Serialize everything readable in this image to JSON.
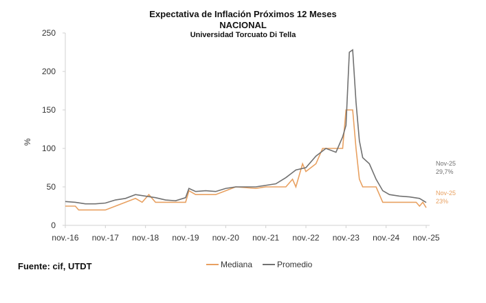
{
  "chart_data": {
    "type": "line",
    "title": "Expectativa de Inflación Próximos 12 Meses",
    "subtitle": "NACIONAL",
    "subtitle2": "Universidad Torcuato Di Tella",
    "ylabel": "%",
    "ylim": [
      0,
      250
    ],
    "yticks": [
      "0",
      "50",
      "100",
      "150",
      "200",
      "250"
    ],
    "xlim": [
      "2016-11",
      "2025-11"
    ],
    "xticks": [
      "nov.-16",
      "nov.-17",
      "nov.-18",
      "nov.-19",
      "nov.-20",
      "nov.-21",
      "nov.-22",
      "nov.-23",
      "nov.-24",
      "nov.-25"
    ],
    "grid": false,
    "legend": "bottom",
    "series": [
      {
        "name": "Mediana",
        "color": "#E8A060",
        "points": [
          [
            "2016-11",
            25
          ],
          [
            "2017-02",
            25
          ],
          [
            "2017-03",
            20
          ],
          [
            "2017-11",
            20
          ],
          [
            "2018-02",
            25
          ],
          [
            "2018-05",
            30
          ],
          [
            "2018-08",
            35
          ],
          [
            "2018-10",
            30
          ],
          [
            "2018-12",
            40
          ],
          [
            "2019-02",
            30
          ],
          [
            "2019-11",
            30
          ],
          [
            "2019-12",
            45
          ],
          [
            "2020-02",
            40
          ],
          [
            "2020-08",
            40
          ],
          [
            "2020-11",
            45
          ],
          [
            "2021-02",
            50
          ],
          [
            "2021-08",
            48
          ],
          [
            "2021-11",
            50
          ],
          [
            "2022-05",
            50
          ],
          [
            "2022-07",
            60
          ],
          [
            "2022-08",
            50
          ],
          [
            "2022-10",
            80
          ],
          [
            "2022-11",
            70
          ],
          [
            "2023-02",
            80
          ],
          [
            "2023-04",
            100
          ],
          [
            "2023-10",
            100
          ],
          [
            "2023-11",
            150
          ],
          [
            "2024-01",
            150
          ],
          [
            "2024-02",
            100
          ],
          [
            "2024-03",
            60
          ],
          [
            "2024-04",
            50
          ],
          [
            "2024-08",
            50
          ],
          [
            "2024-10",
            30
          ],
          [
            "2025-08",
            30
          ],
          [
            "2025-09",
            25
          ],
          [
            "2025-10",
            30
          ],
          [
            "2025-11",
            23
          ]
        ]
      },
      {
        "name": "Promedio",
        "color": "#707070",
        "points": [
          [
            "2016-11",
            31
          ],
          [
            "2017-02",
            30
          ],
          [
            "2017-05",
            28
          ],
          [
            "2017-08",
            28
          ],
          [
            "2017-11",
            29
          ],
          [
            "2018-02",
            33
          ],
          [
            "2018-05",
            35
          ],
          [
            "2018-08",
            40
          ],
          [
            "2018-11",
            38
          ],
          [
            "2019-02",
            36
          ],
          [
            "2019-05",
            33
          ],
          [
            "2019-08",
            32
          ],
          [
            "2019-11",
            36
          ],
          [
            "2019-12",
            48
          ],
          [
            "2020-02",
            44
          ],
          [
            "2020-05",
            45
          ],
          [
            "2020-08",
            44
          ],
          [
            "2020-11",
            48
          ],
          [
            "2021-02",
            50
          ],
          [
            "2021-05",
            50
          ],
          [
            "2021-08",
            50
          ],
          [
            "2021-11",
            52
          ],
          [
            "2022-02",
            54
          ],
          [
            "2022-05",
            62
          ],
          [
            "2022-08",
            72
          ],
          [
            "2022-11",
            75
          ],
          [
            "2023-02",
            90
          ],
          [
            "2023-05",
            100
          ],
          [
            "2023-08",
            95
          ],
          [
            "2023-10",
            115
          ],
          [
            "2023-11",
            130
          ],
          [
            "2023-12",
            225
          ],
          [
            "2024-01",
            228
          ],
          [
            "2024-02",
            160
          ],
          [
            "2024-03",
            110
          ],
          [
            "2024-04",
            88
          ],
          [
            "2024-06",
            80
          ],
          [
            "2024-08",
            60
          ],
          [
            "2024-10",
            45
          ],
          [
            "2024-12",
            40
          ],
          [
            "2025-03",
            38
          ],
          [
            "2025-06",
            37
          ],
          [
            "2025-09",
            35
          ],
          [
            "2025-11",
            29.7
          ]
        ]
      }
    ],
    "annotations": [
      {
        "series": "Promedio",
        "label": "Nov-25",
        "value": "29,7%"
      },
      {
        "series": "Mediana",
        "label": "Nov-25",
        "value": "23%"
      }
    ]
  },
  "source": "Fuente: cif, UTDT"
}
